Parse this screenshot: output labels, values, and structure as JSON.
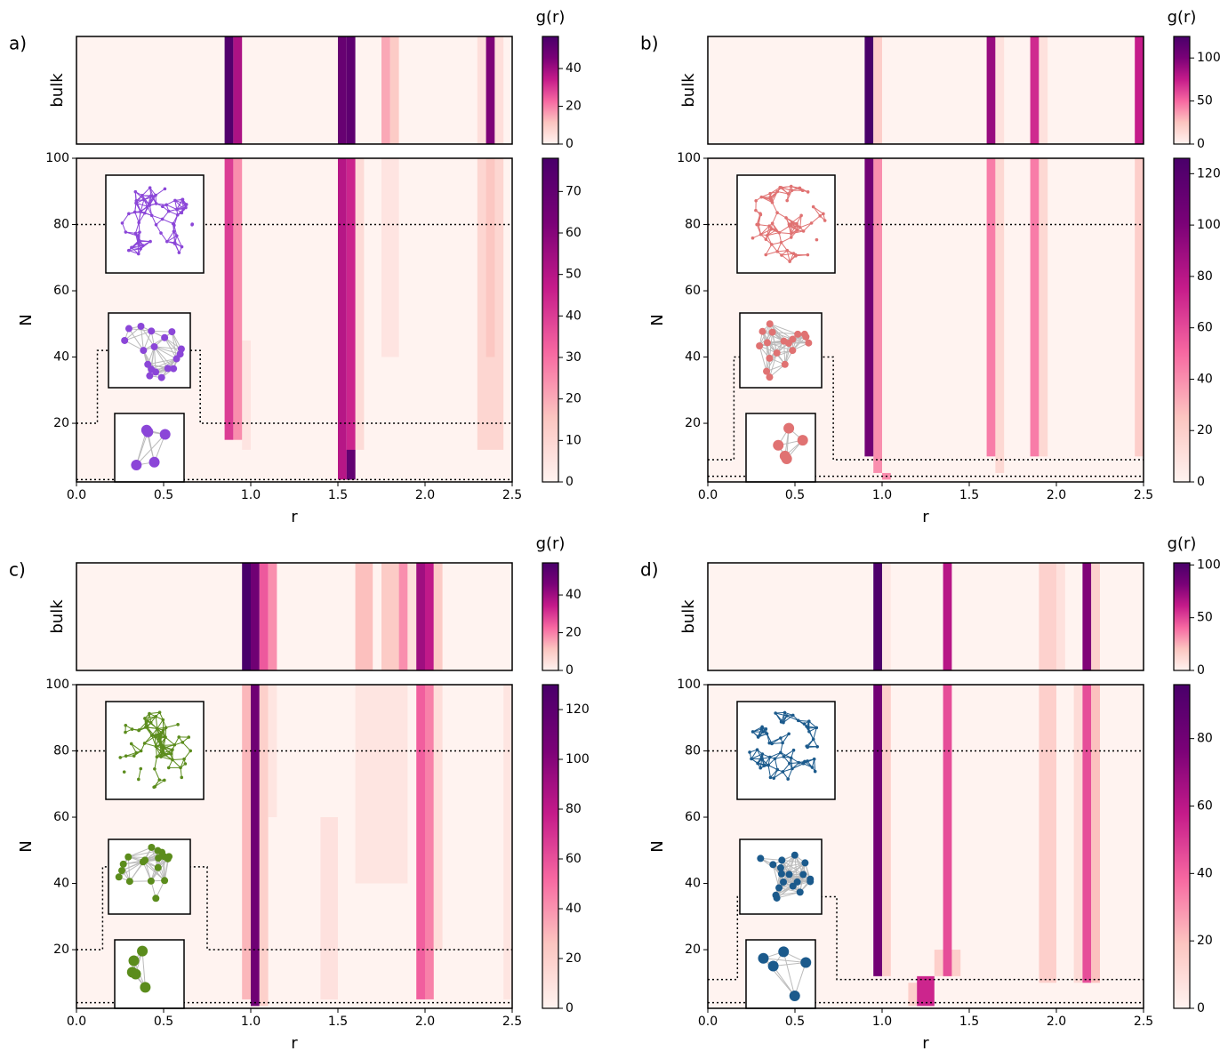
{
  "chart_data": [
    {
      "type": "heatmap",
      "label": "a)",
      "xlabel": "r",
      "ylabel": "N",
      "bulk_label": "bulk",
      "colorbar_label": "g(r)",
      "xlim": [
        0,
        2.5
      ],
      "xticks": [
        {
          "value": 0,
          "label": "0.0"
        },
        0.5,
        {
          "value": 1,
          "label": "1.0"
        },
        1.5,
        {
          "value": 2,
          "label": "2.0"
        },
        2.5
      ],
      "ylim": [
        2.3,
        100
      ],
      "yticks": [
        20,
        40,
        60,
        80,
        100
      ],
      "bulk_clim": [
        0,
        57
      ],
      "bulk_cticks": [
        0,
        20,
        40
      ],
      "clim": [
        0,
        78
      ],
      "cticks": [
        0,
        10,
        20,
        30,
        40,
        50,
        60,
        70
      ],
      "colormap": [
        "#fff3f0",
        "#fcc5c0",
        "#f768a1",
        "#c51b8a",
        "#7a0177",
        "#49006a"
      ],
      "cluster_color": "#8b46d8",
      "bulk": {
        "bins": [
          [
            0.85,
            0.9
          ],
          [
            0.9,
            0.95
          ],
          [
            1.5,
            1.55
          ],
          [
            1.55,
            1.6
          ],
          [
            1.75,
            1.8
          ],
          [
            1.8,
            1.85
          ],
          [
            2.3,
            2.35
          ],
          [
            2.35,
            2.4
          ],
          [
            2.4,
            2.45
          ]
        ],
        "values": [
          55,
          38,
          50,
          52,
          15,
          10,
          5,
          45,
          5
        ]
      },
      "cells": {
        "x": [
          [
            0.95,
            1.0
          ],
          [
            0.85,
            0.9
          ],
          [
            0.9,
            0.95
          ],
          [
            1.6,
            1.65
          ],
          [
            1.75,
            1.85
          ],
          [
            2.3,
            2.45
          ],
          [
            2.35,
            2.4
          ],
          [
            1.5,
            1.55
          ],
          [
            1.55,
            1.6
          ],
          [
            1.55,
            1.6
          ]
        ],
        "N": [
          [
            12,
            45
          ],
          [
            15,
            100
          ],
          [
            15,
            100
          ],
          [
            12,
            100
          ],
          [
            40,
            100
          ],
          [
            12,
            100
          ],
          [
            40,
            100
          ],
          [
            3,
            100
          ],
          [
            3,
            100
          ],
          [
            3,
            12
          ]
        ],
        "values": [
          5,
          40,
          25,
          8,
          5,
          10,
          15,
          50,
          45,
          70
        ]
      },
      "dividers": [
        {
          "x": [
            0,
            2.5
          ],
          "y": [
            80,
            80
          ]
        },
        {
          "x": [
            0,
            0.12,
            0.12,
            0.71,
            0.71,
            2.5
          ],
          "y": [
            20,
            20,
            42,
            42,
            20,
            20
          ]
        },
        {
          "x": [
            0,
            2.5
          ],
          "y": [
            3,
            3
          ]
        }
      ]
    },
    {
      "type": "heatmap",
      "label": "b)",
      "xlabel": "r",
      "ylabel": "N",
      "bulk_label": "bulk",
      "colorbar_label": "g(r)",
      "xlim": [
        0,
        2.5
      ],
      "xticks": [
        {
          "value": 0,
          "label": "0.0"
        },
        0.5,
        {
          "value": 1,
          "label": "1.0"
        },
        1.5,
        {
          "value": 2,
          "label": "2.0"
        },
        2.5
      ],
      "ylim": [
        2.3,
        100
      ],
      "yticks": [
        20,
        40,
        60,
        80,
        100
      ],
      "bulk_clim": [
        0,
        125
      ],
      "bulk_cticks": [
        0,
        50,
        100
      ],
      "clim": [
        0,
        126
      ],
      "cticks": [
        0,
        20,
        40,
        60,
        80,
        100,
        120
      ],
      "colormap": [
        "#fff3f0",
        "#fcc5c0",
        "#f768a1",
        "#c51b8a",
        "#7a0177",
        "#49006a"
      ],
      "cluster_color": "#e07272",
      "bulk": {
        "bins": [
          [
            0.9,
            0.95
          ],
          [
            0.95,
            1.0
          ],
          [
            1.6,
            1.65
          ],
          [
            1.65,
            1.7
          ],
          [
            1.85,
            1.9
          ],
          [
            1.9,
            1.95
          ],
          [
            2.45,
            2.5
          ]
        ],
        "values": [
          125,
          20,
          90,
          10,
          70,
          10,
          75
        ]
      },
      "cells": {
        "x": [
          [
            0.95,
            1.0
          ],
          [
            0.9,
            0.95
          ],
          [
            1.0,
            1.05
          ],
          [
            1.6,
            1.65
          ],
          [
            1.65,
            1.7
          ],
          [
            1.85,
            1.9
          ],
          [
            1.9,
            1.95
          ],
          [
            2.45,
            2.5
          ]
        ],
        "N": [
          [
            5,
            100
          ],
          [
            10,
            100
          ],
          [
            3,
            5
          ],
          [
            10,
            100
          ],
          [
            5,
            100
          ],
          [
            10,
            100
          ],
          [
            10,
            100
          ],
          [
            10,
            100
          ]
        ],
        "values": [
          40,
          105,
          40,
          45,
          15,
          45,
          15,
          20
        ]
      },
      "dividers": [
        {
          "x": [
            0,
            2.5
          ],
          "y": [
            80,
            80
          ]
        },
        {
          "x": [
            0,
            0.15,
            0.15,
            0.72,
            0.72,
            2.5
          ],
          "y": [
            9,
            9,
            40,
            40,
            9,
            9
          ]
        },
        {
          "x": [
            0,
            2.5
          ],
          "y": [
            4,
            4
          ]
        }
      ]
    },
    {
      "type": "heatmap",
      "label": "c)",
      "xlabel": "r",
      "ylabel": "N",
      "bulk_label": "bulk",
      "colorbar_label": "g(r)",
      "xlim": [
        0,
        2.5
      ],
      "xticks": [
        {
          "value": 0,
          "label": "0.0"
        },
        0.5,
        {
          "value": 1,
          "label": "1.0"
        },
        1.5,
        {
          "value": 2,
          "label": "2.0"
        },
        2.5
      ],
      "ylim": [
        2.3,
        100
      ],
      "yticks": [
        20,
        40,
        60,
        80,
        100
      ],
      "bulk_clim": [
        0,
        57
      ],
      "bulk_cticks": [
        0,
        20,
        40
      ],
      "clim": [
        0,
        130
      ],
      "cticks": [
        0,
        20,
        40,
        60,
        80,
        100,
        120
      ],
      "colormap": [
        "#fff3f0",
        "#fcc5c0",
        "#f768a1",
        "#c51b8a",
        "#7a0177",
        "#49006a"
      ],
      "cluster_color": "#5b8c1c",
      "bulk": {
        "bins": [
          [
            0.95,
            1.0
          ],
          [
            1.0,
            1.05
          ],
          [
            1.05,
            1.1
          ],
          [
            1.1,
            1.15
          ],
          [
            1.6,
            1.7
          ],
          [
            1.75,
            1.85
          ],
          [
            1.85,
            1.9
          ],
          [
            1.9,
            1.95
          ],
          [
            1.95,
            2.0
          ],
          [
            2.0,
            2.05
          ],
          [
            2.05,
            2.1
          ]
        ],
        "values": [
          57,
          48,
          25,
          18,
          12,
          10,
          18,
          5,
          40,
          35,
          10
        ]
      },
      "cells": {
        "x": [
          [
            0.95,
            1.0
          ],
          [
            1.0,
            1.05
          ],
          [
            1.05,
            1.1
          ],
          [
            1.1,
            1.15
          ],
          [
            1.4,
            1.5
          ],
          [
            1.6,
            1.9
          ],
          [
            1.95,
            2.0
          ],
          [
            2.0,
            2.05
          ],
          [
            2.05,
            2.1
          ],
          [
            2.45,
            2.5
          ]
        ],
        "N": [
          [
            5,
            100
          ],
          [
            3,
            100
          ],
          [
            3,
            100
          ],
          [
            60,
            100
          ],
          [
            5,
            60
          ],
          [
            40,
            100
          ],
          [
            5,
            100
          ],
          [
            5,
            100
          ],
          [
            20,
            100
          ],
          [
            5,
            100
          ]
        ],
        "values": [
          30,
          110,
          20,
          8,
          10,
          8,
          55,
          45,
          12,
          8
        ]
      },
      "dividers": [
        {
          "x": [
            0,
            2.5
          ],
          "y": [
            80,
            80
          ]
        },
        {
          "x": [
            0,
            0.15,
            0.15,
            0.75,
            0.75,
            2.5
          ],
          "y": [
            20,
            20,
            45,
            45,
            20,
            20
          ]
        },
        {
          "x": [
            0,
            2.5
          ],
          "y": [
            4,
            4
          ]
        }
      ]
    },
    {
      "type": "heatmap",
      "label": "d)",
      "xlabel": "r",
      "ylabel": "N",
      "bulk_label": "bulk",
      "colorbar_label": "g(r)",
      "xlim": [
        0,
        2.5
      ],
      "xticks": [
        {
          "value": 0,
          "label": "0.0"
        },
        0.5,
        {
          "value": 1,
          "label": "1.0"
        },
        1.5,
        {
          "value": 2,
          "label": "2.0"
        },
        2.5
      ],
      "ylim": [
        2.3,
        100
      ],
      "yticks": [
        20,
        40,
        60,
        80,
        100
      ],
      "bulk_clim": [
        0,
        102
      ],
      "bulk_cticks": [
        0,
        50,
        100
      ],
      "clim": [
        0,
        96
      ],
      "cticks": [
        0,
        20,
        40,
        60,
        80
      ],
      "colormap": [
        "#fff3f0",
        "#fcc5c0",
        "#f768a1",
        "#c51b8a",
        "#7a0177",
        "#49006a"
      ],
      "cluster_color": "#1b5a8c",
      "bulk": {
        "bins": [
          [
            0.95,
            1.0
          ],
          [
            1.0,
            1.05
          ],
          [
            1.35,
            1.4
          ],
          [
            1.9,
            2.0
          ],
          [
            2.0,
            2.05
          ],
          [
            2.15,
            2.2
          ],
          [
            2.2,
            2.25
          ]
        ],
        "values": [
          100,
          5,
          65,
          15,
          8,
          80,
          15
        ]
      },
      "cells": {
        "x": [
          [
            0.95,
            1.0
          ],
          [
            1.0,
            1.05
          ],
          [
            1.3,
            1.45
          ],
          [
            1.35,
            1.4
          ],
          [
            1.15,
            1.2
          ],
          [
            1.2,
            1.3
          ],
          [
            1.9,
            2.0
          ],
          [
            2.1,
            2.15
          ],
          [
            2.15,
            2.2
          ],
          [
            2.2,
            2.25
          ]
        ],
        "N": [
          [
            12,
            100
          ],
          [
            12,
            100
          ],
          [
            12,
            20
          ],
          [
            12,
            100
          ],
          [
            3,
            10
          ],
          [
            3,
            12
          ],
          [
            10,
            100
          ],
          [
            10,
            100
          ],
          [
            10,
            100
          ],
          [
            10,
            100
          ]
        ],
        "values": [
          80,
          15,
          15,
          45,
          15,
          55,
          15,
          10,
          45,
          20
        ]
      },
      "dividers": [
        {
          "x": [
            0,
            2.5
          ],
          "y": [
            80,
            80
          ]
        },
        {
          "x": [
            0,
            0.17,
            0.17,
            0.74,
            0.74,
            2.5
          ],
          "y": [
            11,
            11,
            36,
            36,
            11,
            11
          ]
        },
        {
          "x": [
            0,
            2.5
          ],
          "y": [
            4,
            4
          ]
        }
      ]
    }
  ]
}
